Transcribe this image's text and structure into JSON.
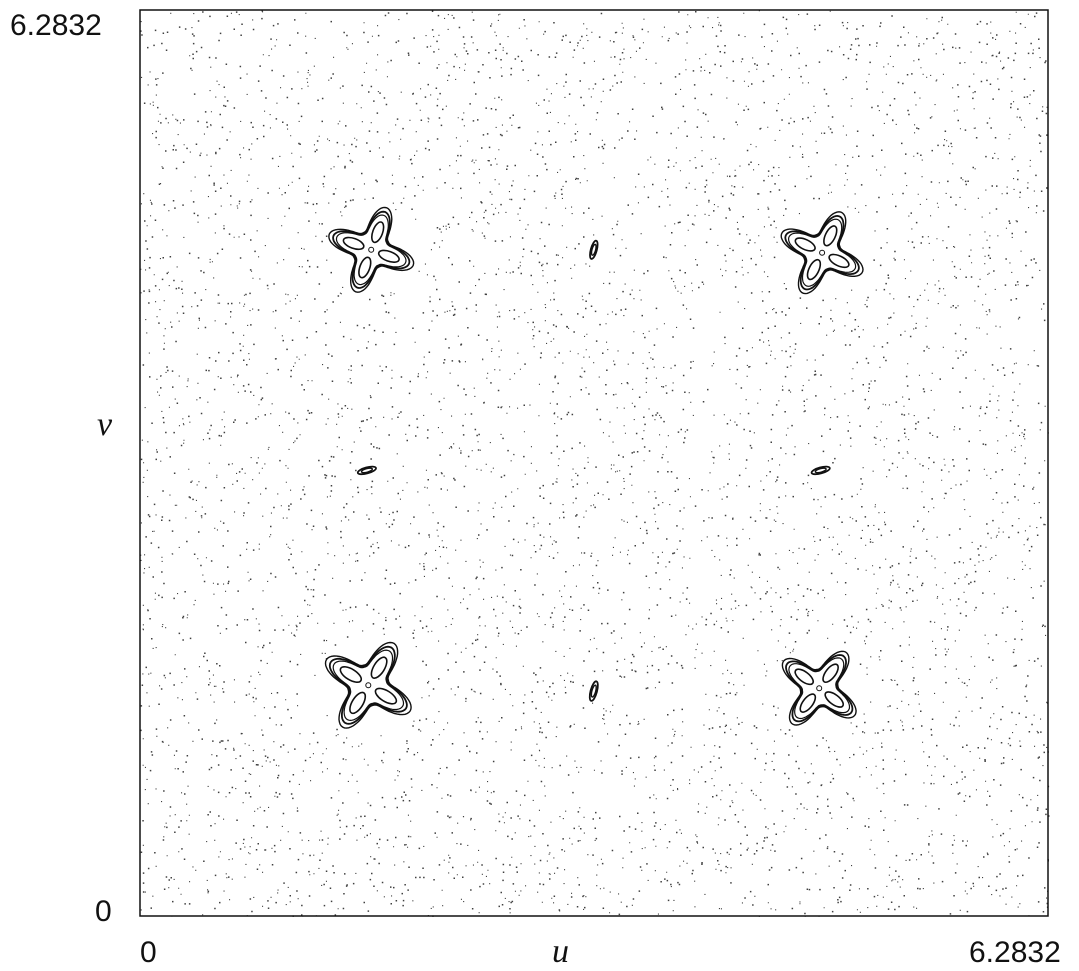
{
  "chart_data": {
    "type": "scatter",
    "title": "",
    "xlabel": "u",
    "ylabel": "v",
    "xlim": [
      0,
      6.2832
    ],
    "ylim": [
      0,
      6.2832
    ],
    "tick_labels": {
      "x_min": "0",
      "x_max": "6.2832",
      "y_min": "0",
      "y_max": "6.2832"
    },
    "grid": false,
    "legend": "none",
    "point_color": "#000000",
    "chaotic_sea": "uniform dense scatter of points filling the whole domain",
    "islands": [
      {
        "center": [
          1.6,
          4.62
        ],
        "shape": "four-armed star",
        "size": 0.62
      },
      {
        "center": [
          4.72,
          4.6
        ],
        "shape": "four-armed star",
        "size": 0.62
      },
      {
        "center": [
          1.58,
          1.6
        ],
        "shape": "four-armed star",
        "size": 0.68
      },
      {
        "center": [
          4.7,
          1.58
        ],
        "shape": "four-armed star",
        "size": 0.62
      },
      {
        "center": [
          3.14,
          4.62
        ],
        "shape": "small ellipse",
        "size": 0.13
      },
      {
        "center": [
          3.14,
          1.56
        ],
        "shape": "small ellipse",
        "size": 0.14
      },
      {
        "center": [
          1.57,
          3.09
        ],
        "shape": "small ellipse",
        "size": 0.13
      },
      {
        "center": [
          4.71,
          3.09
        ],
        "shape": "small ellipse",
        "size": 0.13
      }
    ]
  }
}
